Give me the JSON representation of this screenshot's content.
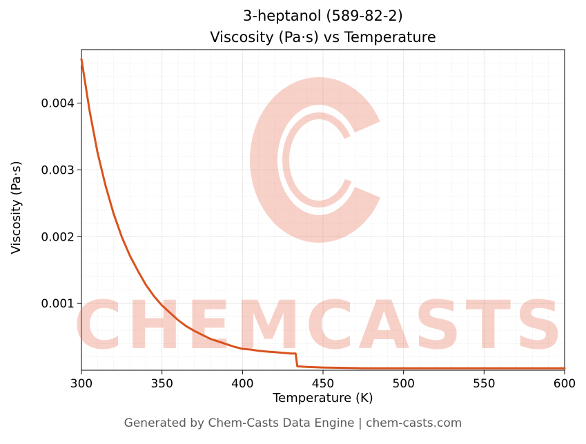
{
  "page": {
    "title_line1": "3-heptanol (589-82-2)",
    "title_line2": "Viscosity (Pa·s) vs Temperature",
    "footer": "Generated by Chem-Casts Data Engine | chem-casts.com"
  },
  "watermark": {
    "text": "CHEMCASTS",
    "logo": "chemcasts-c-swirl-logo",
    "color": "#e8765a",
    "opacity": 0.33
  },
  "chart_data": {
    "type": "line",
    "title": "3-heptanol (589-82-2) — Viscosity (Pa·s) vs Temperature",
    "xlabel": "Temperature (K)",
    "ylabel": "Viscosity (Pa·s)",
    "xlim": [
      300,
      600
    ],
    "ylim": [
      0,
      0.0048
    ],
    "xticks": [
      300,
      350,
      400,
      450,
      500,
      550,
      600
    ],
    "yticks": [
      0.001,
      0.002,
      0.003,
      0.004
    ],
    "x_minor_step": 10,
    "y_minor_step": 0.0002,
    "grid": true,
    "legend": "none",
    "line_color": "#d9531e",
    "line_width": 3,
    "series": [
      {
        "name": "viscosity",
        "x": [
          300,
          305,
          310,
          315,
          320,
          325,
          330,
          335,
          340,
          345,
          350,
          355,
          360,
          365,
          370,
          375,
          380,
          385,
          390,
          395,
          400,
          405,
          410,
          415,
          420,
          425,
          430,
          433,
          434,
          440,
          450,
          475,
          500,
          525,
          550,
          575,
          600
        ],
        "y": [
          0.00466,
          0.00389,
          0.00326,
          0.00276,
          0.00234,
          0.002,
          0.00172,
          0.00149,
          0.00128,
          0.00111,
          0.00097,
          0.00086,
          0.00075,
          0.00066,
          0.00059,
          0.00053,
          0.00047,
          0.00043,
          0.00039,
          0.00035,
          0.00032,
          0.00031,
          0.00029,
          0.00028,
          0.00027,
          0.00026,
          0.00025,
          0.00025,
          6e-05,
          5e-05,
          4e-05,
          3e-05,
          3e-05,
          3e-05,
          3e-05,
          3e-05,
          3e-05
        ]
      }
    ]
  }
}
